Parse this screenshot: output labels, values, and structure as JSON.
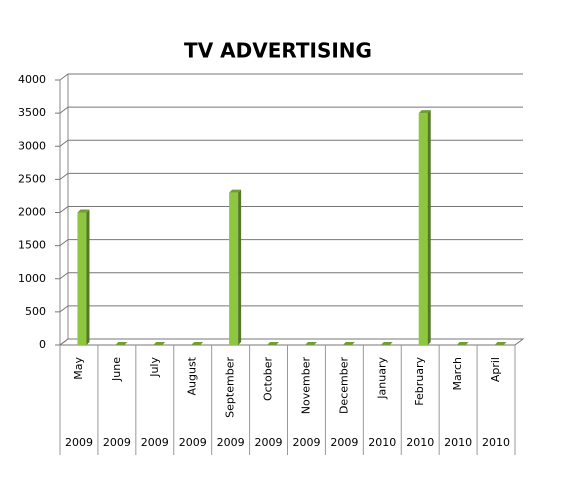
{
  "chart_data": {
    "type": "bar",
    "title": "TV ADVERTISING",
    "categories": [
      "May",
      "June",
      "July",
      "August",
      "September",
      "October",
      "November",
      "December",
      "January",
      "February",
      "March",
      "April"
    ],
    "category_groups": [
      "2009",
      "2009",
      "2009",
      "2009",
      "2009",
      "2009",
      "2009",
      "2009",
      "2010",
      "2010",
      "2010",
      "2010"
    ],
    "values": [
      2000,
      0,
      0,
      0,
      2300,
      0,
      0,
      0,
      0,
      3500,
      0,
      0
    ],
    "color": "#8dc63f",
    "ylim": [
      0,
      4000
    ],
    "yticks": [
      0,
      500,
      1000,
      1500,
      2000,
      2500,
      3000,
      3500,
      4000
    ],
    "grid": true
  }
}
